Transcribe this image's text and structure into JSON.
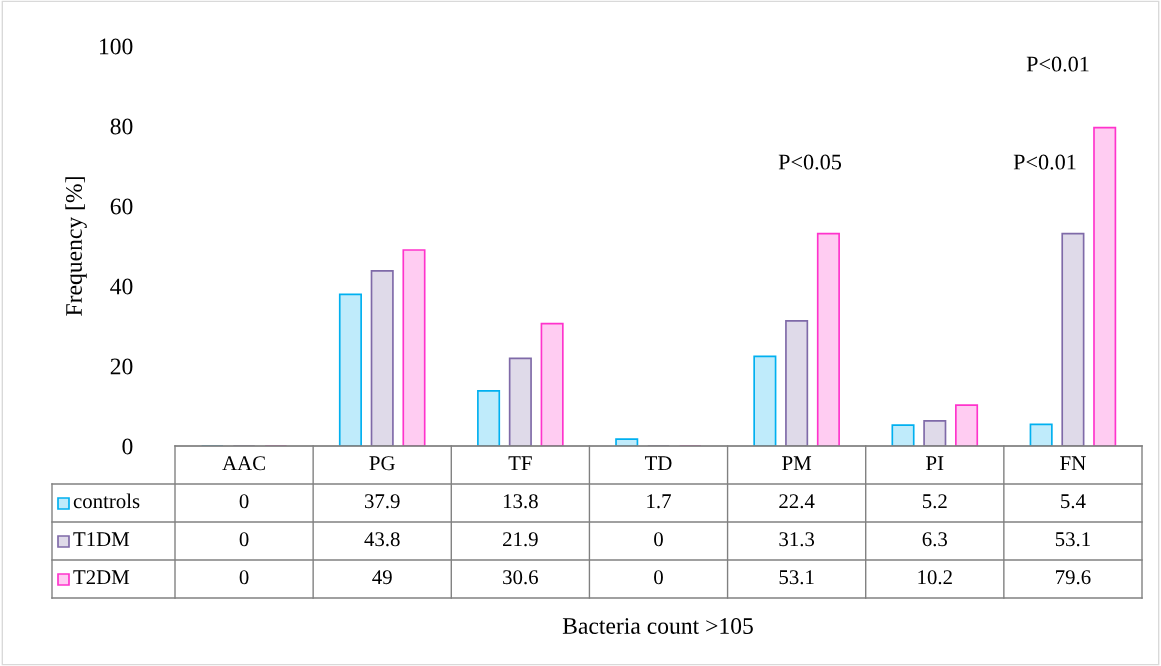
{
  "chart_data": {
    "type": "bar",
    "ylabel": "Frequency [%]",
    "categories": [
      "AAC",
      "PG",
      "TF",
      "TD",
      "PM",
      "PI",
      "FN"
    ],
    "series": [
      {
        "name": "controls",
        "color": "#00b0f0",
        "values": [
          0,
          37.9,
          13.8,
          1.7,
          22.4,
          5.2,
          5.4
        ]
      },
      {
        "name": "T1DM",
        "color": "#7f6aa8",
        "values": [
          0,
          43.8,
          21.9,
          0,
          31.3,
          6.3,
          53.1
        ]
      },
      {
        "name": "T2DM",
        "color": "#ff33cc",
        "values": [
          0,
          49,
          30.6,
          0,
          53.1,
          10.2,
          79.6
        ]
      }
    ],
    "ylim": [
      0,
      100
    ],
    "yticks": [
      0,
      20,
      40,
      60,
      80,
      100
    ],
    "grid": false,
    "legend": "bottom",
    "data_labels": true,
    "annotations": [
      "P<0.05",
      "P<0.01",
      "P<0.01",
      "Bacteria count >105"
    ]
  }
}
